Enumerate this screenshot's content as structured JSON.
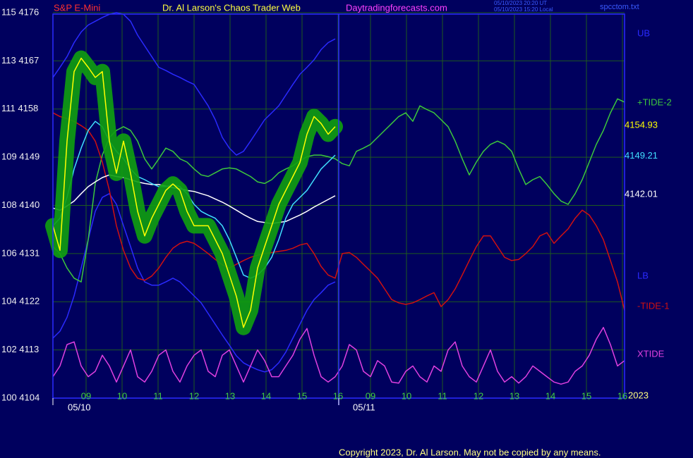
{
  "chart_data": {
    "type": "line",
    "symbol": "S&P E-Mini",
    "title": "Dr. Al Larson's Chaos Trader Web",
    "website": "Daytradingforecasts.com",
    "timestamps": [
      "05/10/2023 20:20 UT",
      "05/10/2023 15:20 Local"
    ],
    "file": "spcctom.txt",
    "copyright": "Copyright 2023, Dr. Al Larson. May not be copied by any means.",
    "year": "2023",
    "days": [
      "05/10",
      "05/11"
    ],
    "hours": [
      [
        "09",
        "10",
        "11",
        "12",
        "13",
        "14",
        "15",
        "16"
      ],
      [
        "09",
        "10",
        "11",
        "12",
        "13",
        "14",
        "15",
        "16"
      ]
    ],
    "ylim": [
      4104,
      4176
    ],
    "yticks": [
      {
        "value": 4176,
        "label": "115 4176"
      },
      {
        "value": 4167,
        "label": "113 4167"
      },
      {
        "value": 4158,
        "label": "111 4158"
      },
      {
        "value": 4149,
        "label": "109 4149"
      },
      {
        "value": 4140,
        "label": "108 4140"
      },
      {
        "value": 4131,
        "label": "106 4131"
      },
      {
        "value": 4122,
        "label": "104 4122"
      },
      {
        "value": 4113,
        "label": "102 4113"
      },
      {
        "value": 4104,
        "label": "100 4104"
      }
    ],
    "grid": true,
    "series": [
      {
        "name": "UB",
        "color": "#2a2aff",
        "values": [
          4163.9,
          4165.8,
          4167.8,
          4170.4,
          4172.4,
          4173.7,
          4174.4,
          4175.1,
          4175.7,
          4176,
          4175.7,
          4174.4,
          4171.8,
          4169.8,
          4167.8,
          4165.8,
          4165.2,
          4164.5,
          4163.9,
          4163.2,
          4162.6,
          4160.6,
          4158.6,
          4156,
          4152.7,
          4150.7,
          4149.4,
          4150.1,
          4152,
          4154,
          4156,
          4157.3,
          4158.6,
          4160.6,
          4162.6,
          4164.5,
          4165.8,
          4167.2,
          4169.1,
          4170.4,
          4171.1,
          null,
          null,
          null,
          null,
          null,
          null,
          null,
          null,
          null,
          null,
          null,
          null,
          null,
          null,
          null,
          null,
          null,
          null,
          null,
          null,
          null,
          null,
          null,
          null,
          null,
          null,
          null,
          null,
          null,
          null,
          null,
          null,
          null,
          null,
          null,
          null,
          null,
          null,
          null,
          null,
          null
        ]
      },
      {
        "name": "LB",
        "color": "#2a2aff",
        "values": [
          4115.2,
          4116.5,
          4119.1,
          4123.1,
          4128.3,
          4133.6,
          4138.9,
          4141.5,
          4142.2,
          4140.2,
          4136.2,
          4132.3,
          4128.3,
          4125.7,
          4125.1,
          4125.1,
          4125.7,
          4126.4,
          4125.7,
          4124.4,
          4123.1,
          4121.8,
          4119.8,
          4117.8,
          4115.8,
          4113.9,
          4111.9,
          4110.6,
          4109.9,
          4109.3,
          4108.9,
          4109.3,
          4110.6,
          4112.6,
          4115.2,
          4117.8,
          4120.4,
          4122.4,
          4123.7,
          4125.1,
          4125.7,
          null,
          null,
          null,
          null,
          null,
          null,
          null,
          null,
          null,
          null,
          null,
          null,
          null,
          null,
          null,
          null,
          null,
          null,
          null,
          null,
          null,
          null,
          null,
          null,
          null,
          null,
          null,
          null,
          null,
          null,
          null,
          null,
          null,
          null,
          null,
          null,
          null,
          null,
          null,
          null,
          null
        ]
      },
      {
        "name": "+TIDE-2",
        "color": "#3cc83c",
        "values": [
          4132.3,
          4131,
          4128.3,
          4126.4,
          4125.7,
          4133.6,
          4144.1,
          4149.4,
          4152.7,
          4154,
          4154.7,
          4154,
          4152,
          4148.7,
          4146.8,
          4148.7,
          4150.7,
          4150.1,
          4148.7,
          4148.1,
          4146.8,
          4145.7,
          4145.4,
          4146.1,
          4146.8,
          4147,
          4146.8,
          4146.1,
          4145.4,
          4144.4,
          4144.1,
          4144.8,
          4146.1,
          4146.8,
          4147.4,
          4148.3,
          4149.1,
          4149.4,
          4149.4,
          4149.1,
          4148.7,
          4147.8,
          4147.4,
          4150.1,
          4150.7,
          4151.4,
          4152.7,
          4154,
          4155.3,
          4156.6,
          4157.3,
          4155.7,
          4158.6,
          4157.9,
          4157.3,
          4156,
          4154.7,
          4152,
          4148.7,
          4145.7,
          4148.1,
          4150.1,
          4151.4,
          4152,
          4151.4,
          4150.1,
          4146.8,
          4143.9,
          4144.8,
          4145.4,
          4143.9,
          4142.2,
          4140.8,
          4140.2,
          4142.2,
          4144.8,
          4148.1,
          4151.4,
          4154,
          4157.3,
          4159.9,
          4159.3
        ]
      },
      {
        "name": "-TIDE-1",
        "color": "#d01010",
        "values": [
          4157.3,
          4156.6,
          4156.2,
          4155.7,
          4154.9,
          4154,
          4152,
          4148.1,
          4142.8,
          4136.2,
          4131.6,
          4128.3,
          4126.4,
          4126,
          4126.8,
          4128.3,
          4130.3,
          4132,
          4132.9,
          4133.3,
          4132.9,
          4132,
          4131,
          4129.9,
          4128.9,
          4128.3,
          4129,
          4129.7,
          4130.3,
          4130.7,
          4131,
          4131.2,
          4131.4,
          4131.6,
          4132,
          4132.6,
          4132.9,
          4131,
          4128.6,
          4127,
          4126.4,
          4131,
          4131.2,
          4130.3,
          4129,
          4127.7,
          4126.4,
          4124.4,
          4122.4,
          4121.8,
          4121.5,
          4121.8,
          4122.4,
          4123.1,
          4123.7,
          4121.1,
          4122.4,
          4124.4,
          4127,
          4129.7,
          4132.3,
          4134.3,
          4134.3,
          4132.3,
          4130.3,
          4129.7,
          4129.9,
          4131,
          4132.3,
          4134.3,
          4134.9,
          4132.9,
          4134.3,
          4135.6,
          4137.6,
          4139.1,
          4138.2,
          4136.2,
          4133.6,
          4129.7,
          4125.7,
          4120.4
        ]
      },
      {
        "name": "XTIDE",
        "color": "#e040e0",
        "values": [
          4108,
          4110,
          4114,
          4114.5,
          4110,
          4108,
          4109,
          4112,
          4110,
          4107,
          4110,
          4113,
          4108,
          4107,
          4109,
          4112,
          4113,
          4109,
          4107,
          4110,
          4112,
          4113,
          4109,
          4108,
          4112,
          4113,
          4110,
          4107,
          4110,
          4113,
          4111,
          4108,
          4108,
          4110,
          4112,
          4115,
          4117,
          4112,
          4108,
          4107,
          4108,
          4110,
          4114,
          4113,
          4109,
          4108,
          4111,
          4110,
          4107,
          4106.8,
          4109,
          4110,
          4108,
          4107,
          4110,
          4109,
          4113,
          4114.5,
          4110,
          4108,
          4107,
          4110,
          4113,
          4109,
          4107,
          4108,
          4106.8,
          4108,
          4110,
          4109,
          4108,
          4107,
          4106.6,
          4107,
          4109,
          4110,
          4112,
          4115,
          4117.2,
          4114,
          4110,
          4111
        ]
      },
      {
        "color": "#ffffff",
        "last_value": 4142.01,
        "values": [
          4139.5,
          4139.1,
          4139.9,
          4140.8,
          4142.2,
          4143.5,
          4144.4,
          4145.2,
          4145.7,
          4145.4,
          4145.2,
          4144.8,
          4144.4,
          4144.1,
          4143.9,
          4143.9,
          4143.6,
          4143.3,
          4143.1,
          4142.8,
          4142.6,
          4142.2,
          4141.8,
          4141.2,
          4140.6,
          4139.9,
          4139.1,
          4138.3,
          4137.6,
          4137,
          4136.8,
          4136.6,
          4136.8,
          4137,
          4137.6,
          4138.2,
          4138.9,
          4139.7,
          4140.4,
          4141.1,
          4141.8,
          null,
          null,
          null,
          null,
          null,
          null,
          null,
          null,
          null,
          null,
          null,
          null,
          null,
          null,
          null,
          null,
          null,
          null,
          null,
          null,
          null,
          null,
          null,
          null,
          null,
          null,
          null,
          null,
          null,
          null,
          null,
          null,
          null,
          null,
          null,
          null,
          null,
          null,
          null,
          null,
          null
        ]
      },
      {
        "color": "#40e0ff",
        "last_value": 4149.21,
        "values": [
          4136.2,
          4137.6,
          4141.5,
          4146.8,
          4150.7,
          4154,
          4155.7,
          4154.7,
          4152,
          4150.1,
          4148.7,
          4146.8,
          4145.4,
          4144.8,
          4144.1,
          4143.5,
          4143.5,
          4143.9,
          4143.5,
          4142.2,
          4140.2,
          4138.9,
          4138.2,
          4137.6,
          4136.2,
          4133.6,
          4130.3,
          4127,
          4126.4,
          4127,
          4128.3,
          4130.3,
          4133.6,
          4137.6,
          4140.2,
          4141.5,
          4142.8,
          4144.8,
          4146.8,
          4148.1,
          4149.4,
          null,
          null,
          null,
          null,
          null,
          null,
          null,
          null,
          null,
          null,
          null,
          null,
          null,
          null,
          null,
          null,
          null,
          null,
          null,
          null,
          null,
          null,
          null,
          null,
          null,
          null,
          null,
          null,
          null,
          null,
          null,
          null,
          null,
          null,
          null,
          null,
          null,
          null,
          null,
          null,
          null
        ]
      },
      {
        "color": "#ffff00",
        "last_value": 4154.93,
        "values": [
          4136.2,
          4131.6,
          4152,
          4165,
          4167.5,
          4165.8,
          4163.9,
          4165,
          4152,
          4146,
          4152,
          4146,
          4138.9,
          4134.3,
          4137.6,
          4140.2,
          4142.8,
          4144,
          4142.8,
          4138.9,
          4136.2,
          4136.2,
          4136.2,
          4133.6,
          4131,
          4127,
          4123,
          4117.2,
          4120.4,
          4128.3,
          4132.3,
          4136.2,
          4140.2,
          4142.8,
          4145.4,
          4148,
          4153.3,
          4156.6,
          4155.3,
          4153.3,
          4154.7,
          null,
          null,
          null,
          null,
          null,
          null,
          null,
          null,
          null,
          null,
          null,
          null,
          null,
          null,
          null,
          null,
          null,
          null,
          null,
          null,
          null,
          null,
          null,
          null,
          null,
          null,
          null,
          null,
          null,
          null,
          null,
          null,
          null,
          null,
          null,
          null,
          null,
          null,
          null,
          null,
          null
        ]
      }
    ]
  }
}
